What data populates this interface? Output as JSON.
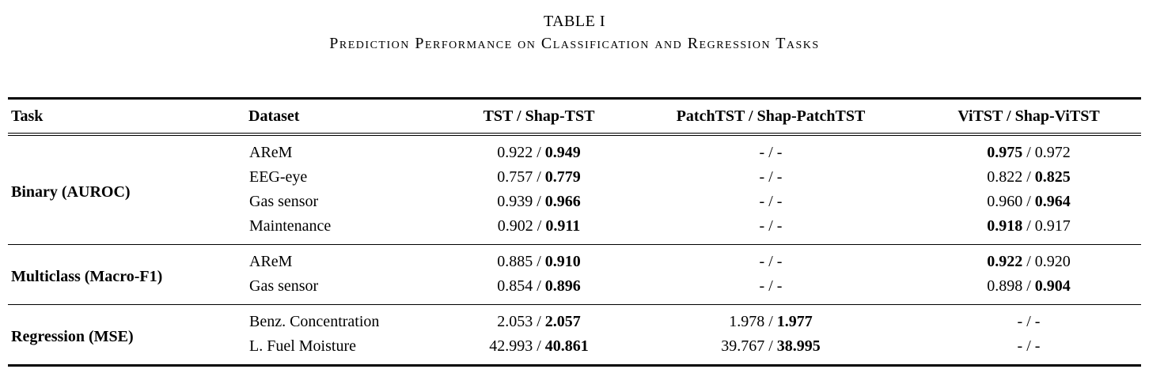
{
  "page": {
    "title": "TABLE I",
    "subtitle": "Prediction Performance on Classification and Regression Tasks"
  },
  "table": {
    "columns": [
      "Task",
      "Dataset",
      "TST / Shap-TST",
      "PatchTST / Shap-PatchTST",
      "ViTST / Shap-ViTST"
    ],
    "separator": "/",
    "sections": [
      {
        "id": "binary",
        "task": "Binary (AUROC)",
        "rows": [
          {
            "dataset": "AReM",
            "tst": {
              "v1": "0.922",
              "v2": "0.949",
              "bold": 2
            },
            "patchtst": {
              "v1": "-",
              "v2": "-",
              "bold": 0
            },
            "vitst": {
              "v1": "0.975",
              "v2": "0.972",
              "bold": 1
            }
          },
          {
            "dataset": "EEG-eye",
            "tst": {
              "v1": "0.757",
              "v2": "0.779",
              "bold": 2
            },
            "patchtst": {
              "v1": "-",
              "v2": "-",
              "bold": 0
            },
            "vitst": {
              "v1": "0.822",
              "v2": "0.825",
              "bold": 2
            }
          },
          {
            "dataset": "Gas sensor",
            "tst": {
              "v1": "0.939",
              "v2": "0.966",
              "bold": 2
            },
            "patchtst": {
              "v1": "-",
              "v2": "-",
              "bold": 0
            },
            "vitst": {
              "v1": "0.960",
              "v2": "0.964",
              "bold": 2
            }
          },
          {
            "dataset": "Maintenance",
            "tst": {
              "v1": "0.902",
              "v2": "0.911",
              "bold": 2
            },
            "patchtst": {
              "v1": "-",
              "v2": "-",
              "bold": 0
            },
            "vitst": {
              "v1": "0.918",
              "v2": "0.917",
              "bold": 1
            }
          }
        ]
      },
      {
        "id": "multiclass",
        "task": "Multiclass (Macro-F1)",
        "rows": [
          {
            "dataset": "AReM",
            "tst": {
              "v1": "0.885",
              "v2": "0.910",
              "bold": 2
            },
            "patchtst": {
              "v1": "-",
              "v2": "-",
              "bold": 0
            },
            "vitst": {
              "v1": "0.922",
              "v2": "0.920",
              "bold": 1
            }
          },
          {
            "dataset": "Gas sensor",
            "tst": {
              "v1": "0.854",
              "v2": "0.896",
              "bold": 2
            },
            "patchtst": {
              "v1": "-",
              "v2": "-",
              "bold": 0
            },
            "vitst": {
              "v1": "0.898",
              "v2": "0.904",
              "bold": 2
            }
          }
        ]
      },
      {
        "id": "regression",
        "task": "Regression (MSE)",
        "rows": [
          {
            "dataset": "Benz. Concentration",
            "tst": {
              "v1": "2.053",
              "v2": "2.057",
              "bold": 2
            },
            "patchtst": {
              "v1": "1.978",
              "v2": "1.977",
              "bold": 2
            },
            "vitst": {
              "v1": "-",
              "v2": "-",
              "bold": 0
            }
          },
          {
            "dataset": "L. Fuel Moisture",
            "tst": {
              "v1": "42.993",
              "v2": "40.861",
              "bold": 2
            },
            "patchtst": {
              "v1": "39.767",
              "v2": "38.995",
              "bold": 2
            },
            "vitst": {
              "v1": "-",
              "v2": "-",
              "bold": 0
            }
          }
        ]
      }
    ]
  }
}
